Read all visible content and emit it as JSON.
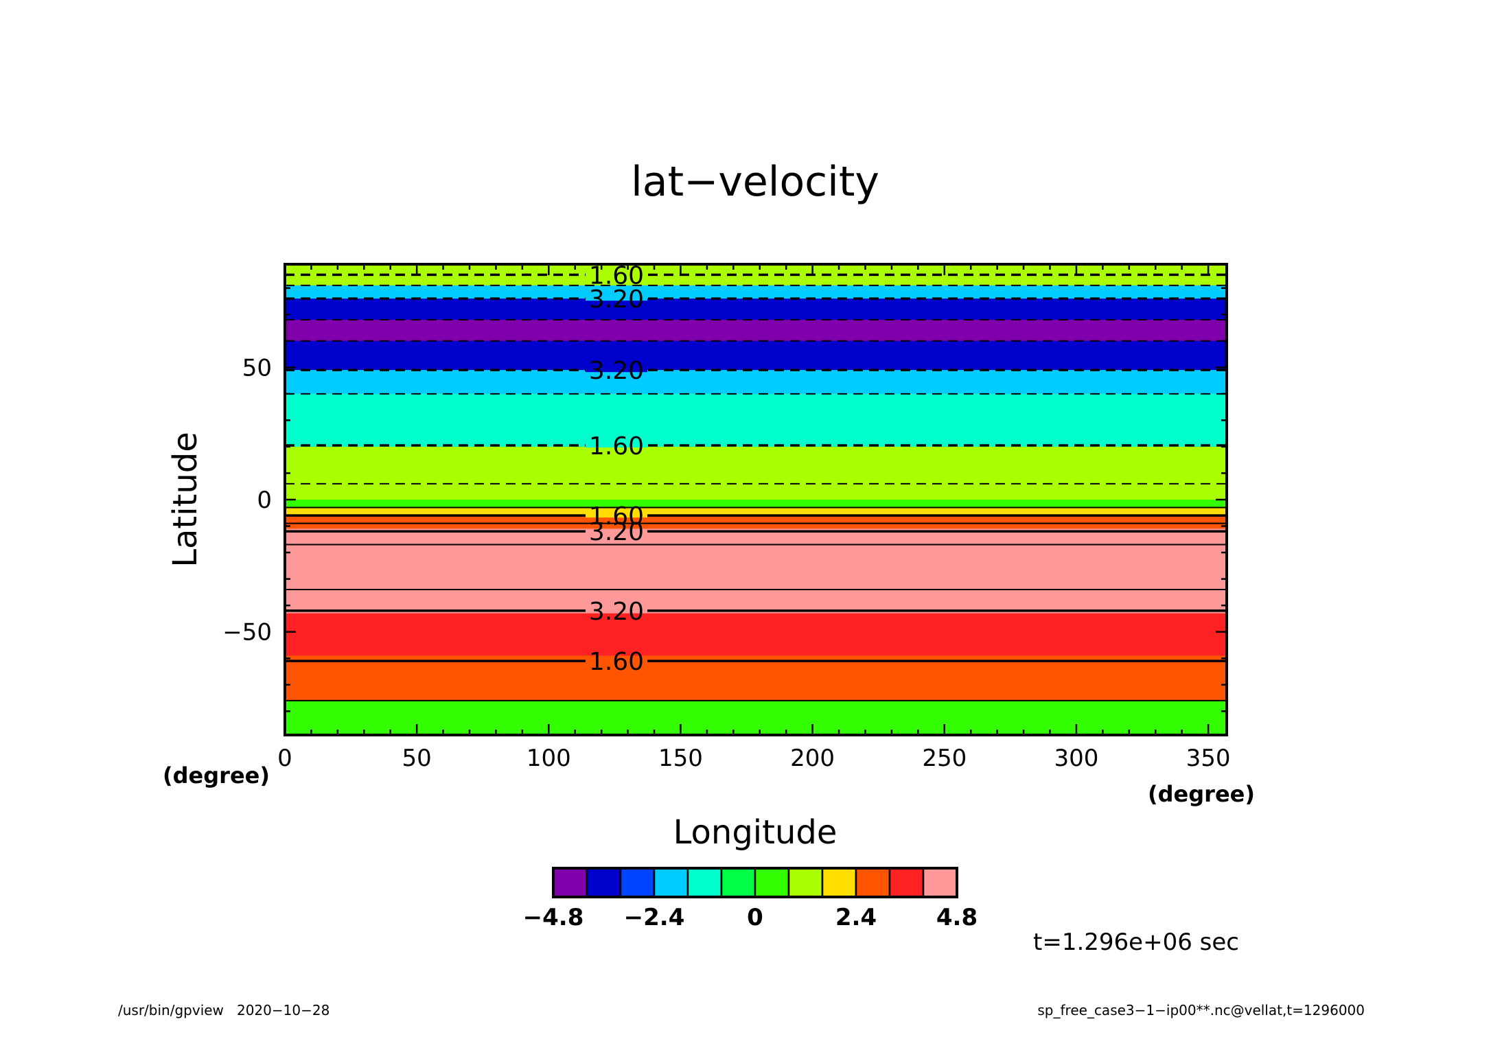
{
  "chart_data": {
    "type": "heatmap",
    "title": "lat−velocity",
    "xlabel": "Longitude",
    "ylabel": "Latitude",
    "x_unit": "(degree)",
    "y_unit": "(degree)",
    "xlim": [
      0,
      357
    ],
    "ylim": [
      -89,
      89
    ],
    "x_ticks": [
      0,
      50,
      100,
      150,
      200,
      250,
      300,
      350
    ],
    "x_tick_labels": [
      "0",
      "50",
      "100",
      "150",
      "200",
      "250",
      "300",
      "350"
    ],
    "y_ticks": [
      -50,
      0,
      50
    ],
    "y_tick_labels": [
      "−50",
      "0",
      "50"
    ],
    "bands": [
      {
        "lat_min": 81,
        "lat_max": 89,
        "value": 1.2
      },
      {
        "lat_min": 76,
        "lat_max": 81,
        "value": -2.4
      },
      {
        "lat_min": 68,
        "lat_max": 76,
        "value": -4.0
      },
      {
        "lat_min": 60,
        "lat_max": 68,
        "value": -4.8
      },
      {
        "lat_min": 49,
        "lat_max": 60,
        "value": -4.0
      },
      {
        "lat_min": 40,
        "lat_max": 49,
        "value": -2.4
      },
      {
        "lat_min": 20,
        "lat_max": 40,
        "value": -1.6
      },
      {
        "lat_min": 0,
        "lat_max": 20,
        "value": 0.8
      },
      {
        "lat_min": -3,
        "lat_max": 0,
        "value": 0.0
      },
      {
        "lat_min": -6,
        "lat_max": -3,
        "value": 1.6
      },
      {
        "lat_min": -11,
        "lat_max": -6,
        "value": 2.4
      },
      {
        "lat_min": -17,
        "lat_max": -11,
        "value": 4.0
      },
      {
        "lat_min": -34,
        "lat_max": -17,
        "value": 4.8
      },
      {
        "lat_min": -43,
        "lat_max": -34,
        "value": 4.0
      },
      {
        "lat_min": -59,
        "lat_max": -43,
        "value": 3.2
      },
      {
        "lat_min": -76,
        "lat_max": -59,
        "value": 2.4
      },
      {
        "lat_min": -89,
        "lat_max": -76,
        "value": 0.0
      }
    ],
    "contours": [
      {
        "lat": 85,
        "dashed": true,
        "label": "1.60"
      },
      {
        "lat": 81,
        "dashed": true,
        "label": ""
      },
      {
        "lat": 76,
        "dashed": true,
        "label": "3.20"
      },
      {
        "lat": 68,
        "dashed": true,
        "label": ""
      },
      {
        "lat": 60,
        "dashed": true,
        "label": ""
      },
      {
        "lat": 49,
        "dashed": true,
        "label": "3.20"
      },
      {
        "lat": 40,
        "dashed": true,
        "label": ""
      },
      {
        "lat": 20.5,
        "dashed": true,
        "label": "1.60"
      },
      {
        "lat": 6,
        "dashed": true,
        "label": ""
      },
      {
        "lat": -3,
        "dashed": false,
        "label": ""
      },
      {
        "lat": -6,
        "dashed": false,
        "label": "1.60"
      },
      {
        "lat": -9,
        "dashed": false,
        "label": ""
      },
      {
        "lat": -12,
        "dashed": false,
        "label": "3.20"
      },
      {
        "lat": -17,
        "dashed": false,
        "label": ""
      },
      {
        "lat": -34,
        "dashed": false,
        "label": ""
      },
      {
        "lat": -42,
        "dashed": false,
        "label": "3.20"
      },
      {
        "lat": -61,
        "dashed": false,
        "label": "1.60"
      },
      {
        "lat": -76,
        "dashed": false,
        "label": ""
      }
    ],
    "colorbar": {
      "levels": [
        -4.8,
        -4.0,
        -3.2,
        -2.4,
        -1.6,
        -0.8,
        0.0,
        0.8,
        1.6,
        2.4,
        3.2,
        4.0,
        4.8
      ],
      "colors": [
        "#7f00aa",
        "#0000cc",
        "#0044ff",
        "#00ccff",
        "#00ffcc",
        "#00ff44",
        "#33ff00",
        "#aaff00",
        "#ffdd00",
        "#ff5500",
        "#ff2222",
        "#ff9999"
      ],
      "tick_labels": [
        "−4.8",
        "−2.4",
        "0",
        "2.4",
        "4.8"
      ],
      "tick_values": [
        -4.8,
        -2.4,
        0,
        2.4,
        4.8
      ]
    }
  },
  "time_label": "t=1.296e+06 sec",
  "footer_left": "/usr/bin/gpview   2020−10−28",
  "footer_right": "sp_free_case3−1−ip00**.nc@vellat,t=1296000"
}
